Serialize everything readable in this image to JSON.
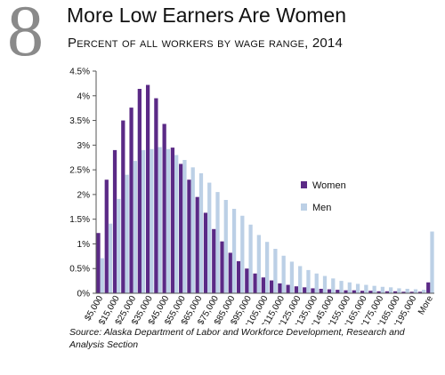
{
  "figure_number": "8",
  "source": "Source: Alaska Department of Labor and Workforce Development, Research and Analysis Section",
  "chart_data": {
    "type": "bar",
    "title": "More Low Earners Are Women",
    "subtitle": "Percent of all workers by wage range, 2014",
    "xlabel": "",
    "ylabel": "",
    "ylim": [
      0,
      4.5
    ],
    "yticks": [
      "0%",
      "0.5%",
      "1%",
      "1.5%",
      "2%",
      "2.5%",
      "3%",
      "3.5%",
      "4%",
      "4.5%"
    ],
    "grid": false,
    "legend_position": "right",
    "categories": [
      "$5,000",
      "$10,000",
      "$15,000",
      "$20,000",
      "$25,000",
      "$30,000",
      "$35,000",
      "$40,000",
      "$45,000",
      "$50,000",
      "$55,000",
      "$60,000",
      "$65,000",
      "$70,000",
      "$75,000",
      "$80,000",
      "$85,000",
      "$90,000",
      "$95,000",
      "$100,000",
      "$105,000",
      "$110,000",
      "$115,000",
      "$120,000",
      "$125,000",
      "$130,000",
      "$135,000",
      "$140,000",
      "$145,000",
      "$150,000",
      "$155,000",
      "$160,000",
      "$165,000",
      "$170,000",
      "$175,000",
      "$180,000",
      "$185,000",
      "$190,000",
      "$195,000",
      "$200,000",
      "More"
    ],
    "tick_labels": [
      "$5,000",
      "",
      "$15,000",
      "",
      "$25,000",
      "",
      "$35,000",
      "",
      "$45,000",
      "",
      "$55,000",
      "",
      "$65,000",
      "",
      "$75,000",
      "",
      "$85,000",
      "",
      "$95,000",
      "",
      "$105,000",
      "",
      "$115,000",
      "",
      "$125,000",
      "",
      "$135,000",
      "",
      "$145,000",
      "",
      "$155,000",
      "",
      "$165,000",
      "",
      "$175,000",
      "",
      "$185,000",
      "",
      "$195,000",
      "",
      "More"
    ],
    "series": [
      {
        "name": "Women",
        "color": "#5b2a86",
        "values": [
          1.22,
          2.3,
          2.9,
          3.5,
          3.76,
          4.14,
          4.22,
          3.95,
          3.43,
          2.95,
          2.62,
          2.3,
          1.95,
          1.63,
          1.3,
          1.05,
          0.82,
          0.65,
          0.5,
          0.4,
          0.32,
          0.26,
          0.2,
          0.17,
          0.14,
          0.12,
          0.1,
          0.09,
          0.08,
          0.07,
          0.06,
          0.06,
          0.05,
          0.05,
          0.04,
          0.04,
          0.04,
          0.03,
          0.03,
          0.03,
          0.22
        ]
      },
      {
        "name": "Men",
        "color": "#bcd0e6",
        "values": [
          0.71,
          1.41,
          1.91,
          2.4,
          2.68,
          2.9,
          2.92,
          2.96,
          2.92,
          2.8,
          2.7,
          2.55,
          2.43,
          2.24,
          2.05,
          1.89,
          1.71,
          1.57,
          1.39,
          1.18,
          1.04,
          0.9,
          0.76,
          0.64,
          0.55,
          0.47,
          0.4,
          0.35,
          0.3,
          0.25,
          0.22,
          0.19,
          0.17,
          0.15,
          0.13,
          0.12,
          0.1,
          0.09,
          0.08,
          0.07,
          1.25
        ]
      }
    ]
  }
}
